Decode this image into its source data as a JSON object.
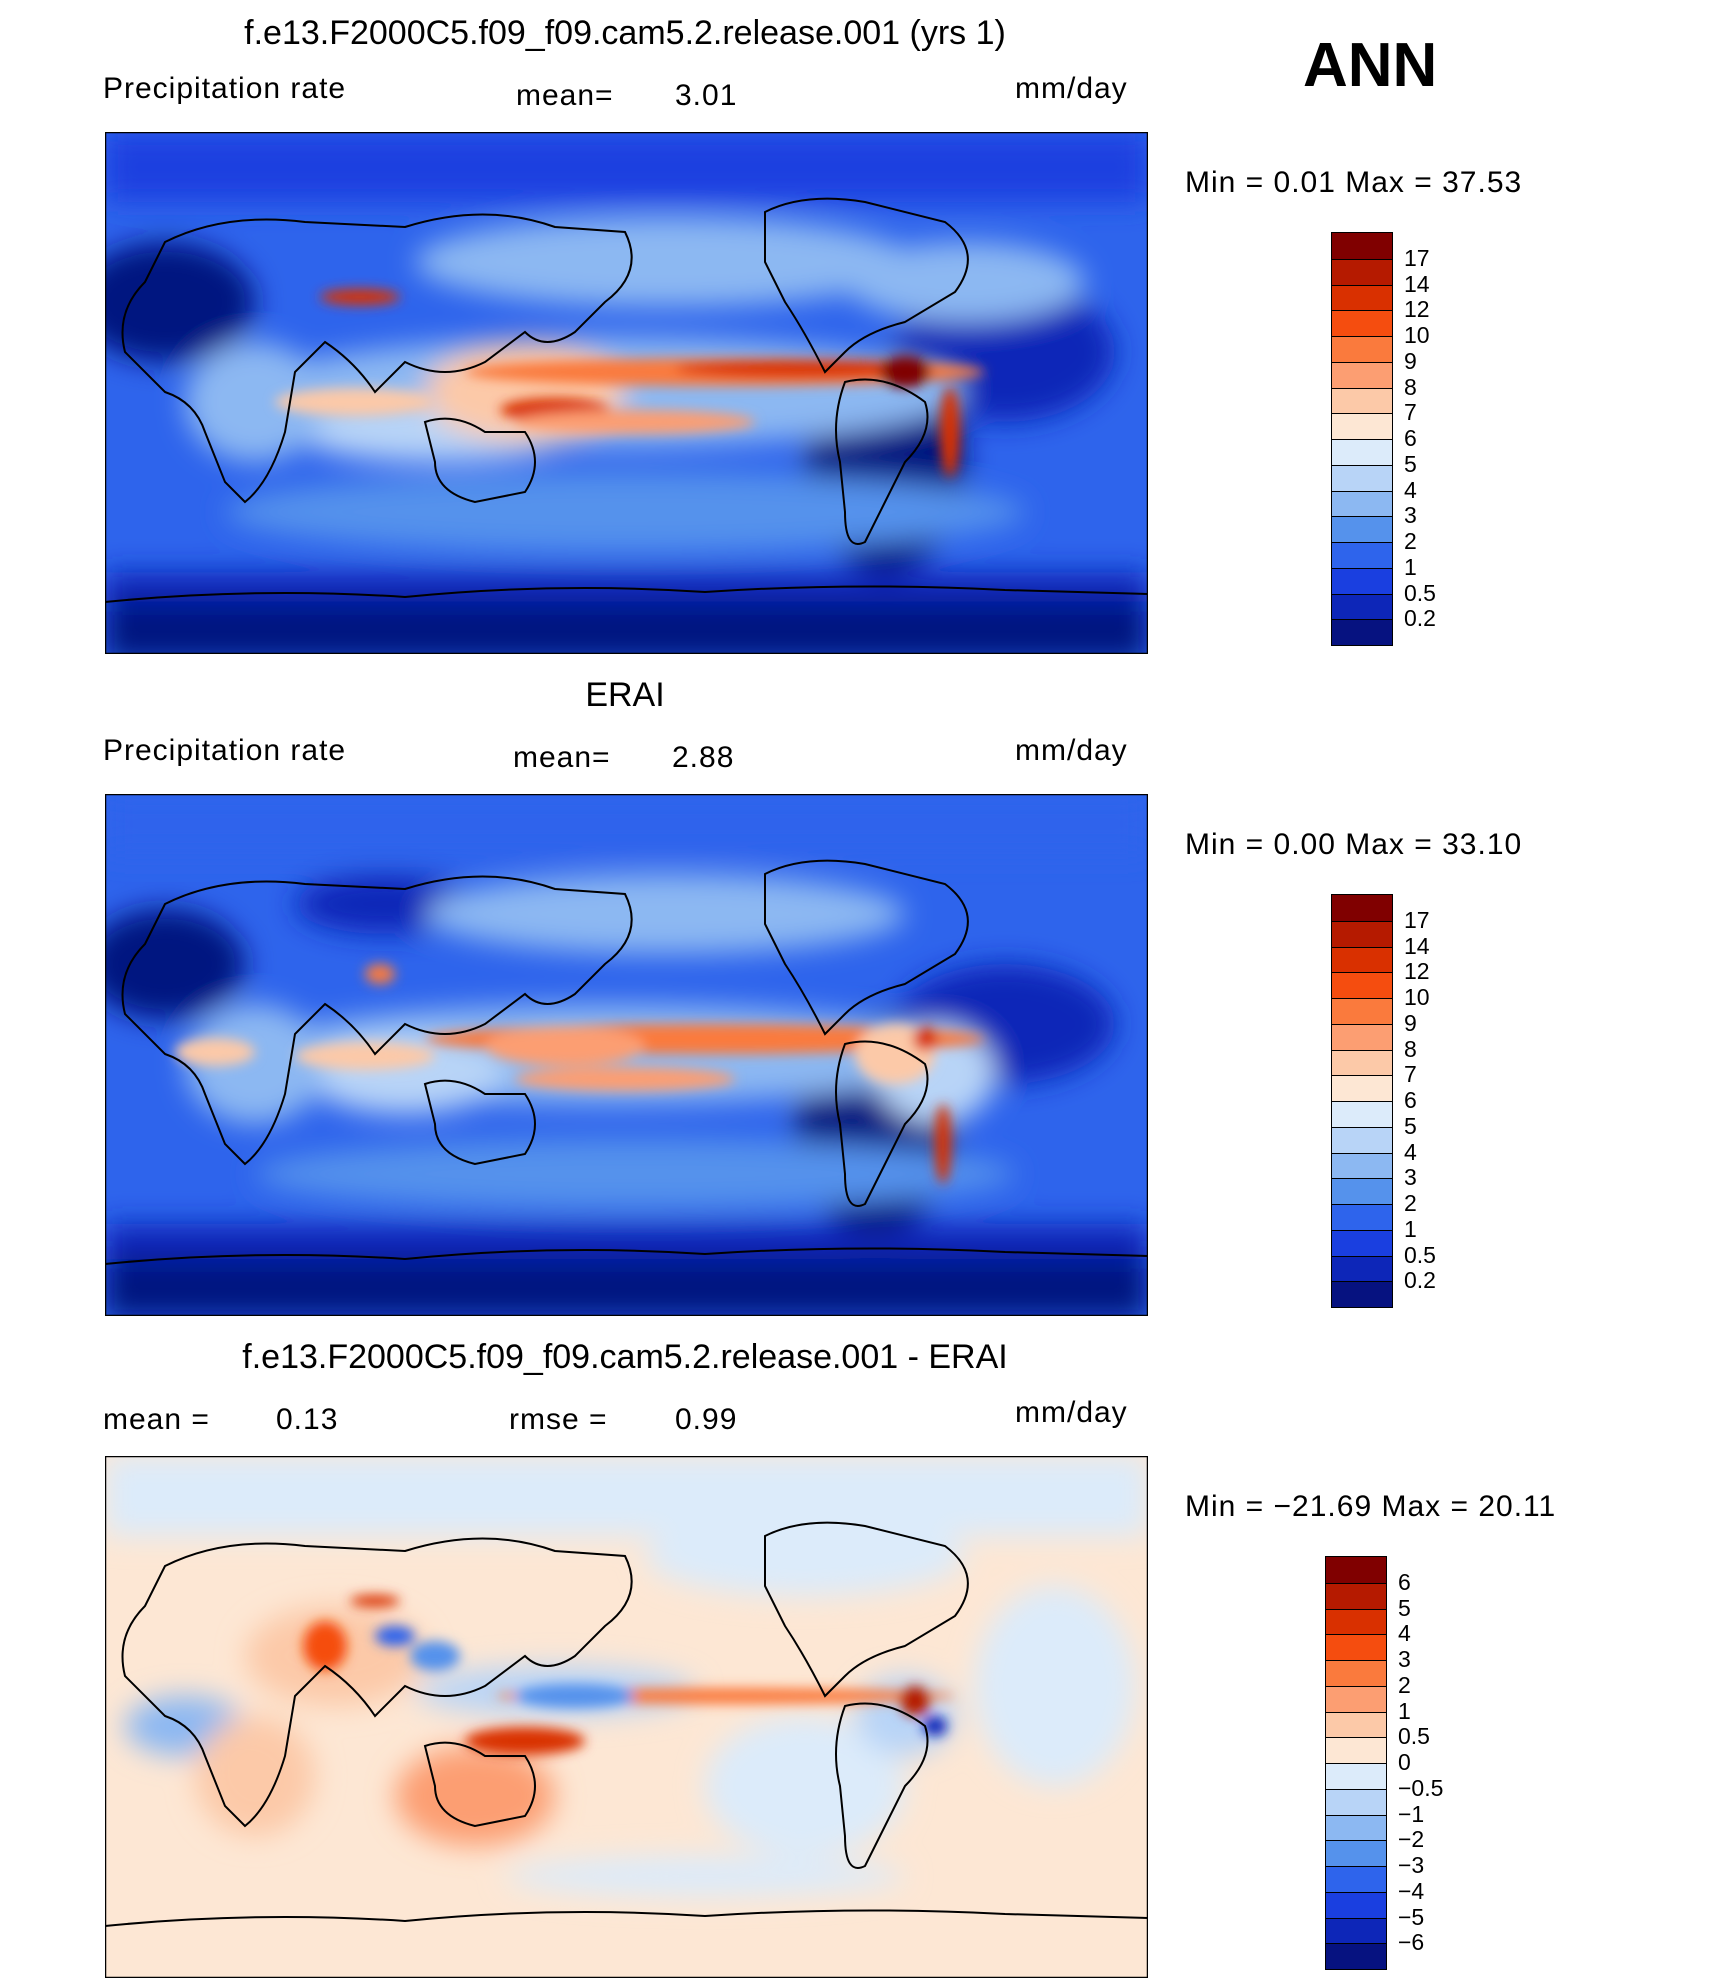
{
  "season": "ANN",
  "panels": [
    {
      "title": "f.e13.F2000C5.f09_f09.cam5.2.release.001 (yrs 1)",
      "left_label": "Precipitation  rate",
      "center_label": "mean=",
      "center_value": "3.01",
      "right_label": "mm/day",
      "minmax_text": "Min  =     0.01  Max  =    37.53",
      "colorbar": {
        "labels": [
          "17",
          "14",
          "12",
          "10",
          "9",
          "8",
          "7",
          "6",
          "5",
          "4",
          "3",
          "2",
          "1",
          "0.5",
          "0.2"
        ],
        "colors": [
          "#800000",
          "#b51a00",
          "#d93000",
          "#f54d0f",
          "#fa7a3d",
          "#fc9e72",
          "#fcc9a8",
          "#fde7d4",
          "#dcebfa",
          "#b8d4f7",
          "#8cb8f2",
          "#5592ec",
          "#2e64ec",
          "#1a3fe0",
          "#0d26b8",
          "#061280"
        ]
      }
    },
    {
      "title": "ERAI",
      "left_label": "Precipitation  rate",
      "center_label": "mean=",
      "center_value": "2.88",
      "right_label": "mm/day",
      "minmax_text": "Min  =     0.00  Max  =    33.10",
      "colorbar": {
        "labels": [
          "17",
          "14",
          "12",
          "10",
          "9",
          "8",
          "7",
          "6",
          "5",
          "4",
          "3",
          "2",
          "1",
          "0.5",
          "0.2"
        ],
        "colors": [
          "#800000",
          "#b51a00",
          "#d93000",
          "#f54d0f",
          "#fa7a3d",
          "#fc9e72",
          "#fcc9a8",
          "#fde7d4",
          "#dcebfa",
          "#b8d4f7",
          "#8cb8f2",
          "#5592ec",
          "#2e64ec",
          "#1a3fe0",
          "#0d26b8",
          "#061280"
        ]
      }
    },
    {
      "title": "f.e13.F2000C5.f09_f09.cam5.2.release.001 - ERAI",
      "left_label": "mean  =",
      "left_value": "0.13",
      "center_label": "rmse  =",
      "center_value": "0.99",
      "right_label": "mm/day",
      "minmax_text": "Min  = −21.69  Max  =    20.11",
      "colorbar": {
        "labels": [
          "6",
          "5",
          "4",
          "3",
          "2",
          "1",
          "0.5",
          "0",
          "−0.5",
          "−1",
          "−2",
          "−3",
          "−4",
          "−5",
          "−6"
        ],
        "colors": [
          "#800000",
          "#b51a00",
          "#d93000",
          "#f54d0f",
          "#fa7a3d",
          "#fc9e72",
          "#fcc9a8",
          "#fde7d4",
          "#dcebfa",
          "#b8d4f7",
          "#8cb8f2",
          "#5592ec",
          "#2e64ec",
          "#1a3fe0",
          "#0d26b8",
          "#061280"
        ]
      }
    }
  ],
  "chart_data": [
    {
      "type": "heatmap",
      "title": "f.e13.F2000C5.f09_f09.cam5.2.release.001 (yrs 1)",
      "variable": "Precipitation  rate",
      "units": "mm/day",
      "mean": 3.01,
      "min": 0.01,
      "max": 37.53,
      "contour_levels": [
        0.2,
        0.5,
        1,
        2,
        3,
        4,
        5,
        6,
        7,
        8,
        9,
        10,
        12,
        14,
        17
      ]
    },
    {
      "type": "heatmap",
      "title": "ERAI",
      "variable": "Precipitation  rate",
      "units": "mm/day",
      "mean": 2.88,
      "min": 0.0,
      "max": 33.1,
      "contour_levels": [
        0.2,
        0.5,
        1,
        2,
        3,
        4,
        5,
        6,
        7,
        8,
        9,
        10,
        12,
        14,
        17
      ]
    },
    {
      "type": "heatmap",
      "title": "f.e13.F2000C5.f09_f09.cam5.2.release.001 - ERAI",
      "units": "mm/day",
      "mean": 0.13,
      "rmse": 0.99,
      "min": -21.69,
      "max": 20.11,
      "contour_levels": [
        -6,
        -5,
        -4,
        -3,
        -2,
        -1,
        -0.5,
        0,
        0.5,
        1,
        2,
        3,
        4,
        5,
        6
      ]
    }
  ]
}
